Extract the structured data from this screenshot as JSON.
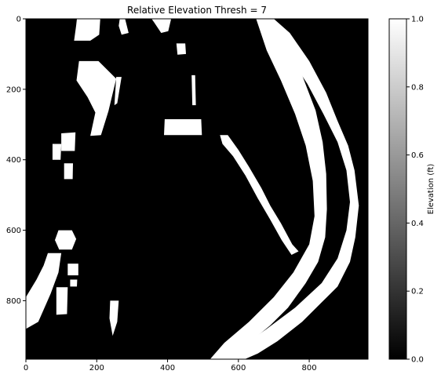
{
  "chart_data": {
    "type": "heatmap",
    "title": "Relative Elevation Thresh = 7",
    "xlabel": "",
    "ylabel": "",
    "xlim": [
      0,
      966
    ],
    "ylim": [
      966,
      0
    ],
    "xticks": [
      0,
      200,
      400,
      600,
      800
    ],
    "yticks": [
      0,
      200,
      400,
      600,
      800
    ],
    "colormap": "gray",
    "background_value": 0,
    "foreground_value": 1,
    "colorbar": {
      "label": "Elevation (ft)",
      "range": [
        0,
        1
      ],
      "ticks": [
        "0.0",
        "0.2",
        "0.4",
        "0.6",
        "0.8",
        "1.0"
      ]
    },
    "masked_regions": [
      {
        "name": "top-left-blob",
        "points": [
          [
            144,
            0
          ],
          [
            210,
            0
          ],
          [
            207,
            45
          ],
          [
            182,
            62
          ],
          [
            136,
            62
          ],
          [
            142,
            18
          ]
        ]
      },
      {
        "name": "top-center-mark",
        "points": [
          [
            265,
            0
          ],
          [
            280,
            0
          ],
          [
            290,
            40
          ],
          [
            270,
            45
          ],
          [
            262,
            20
          ]
        ]
      },
      {
        "name": "top-right-small",
        "points": [
          [
            355,
            0
          ],
          [
            410,
            0
          ],
          [
            402,
            35
          ],
          [
            382,
            40
          ],
          [
            362,
            10
          ]
        ]
      },
      {
        "name": "center-small-square",
        "points": [
          [
            425,
            70
          ],
          [
            450,
            70
          ],
          [
            452,
            100
          ],
          [
            428,
            102
          ]
        ]
      },
      {
        "name": "left-strand",
        "points": [
          [
            150,
            120
          ],
          [
            205,
            120
          ],
          [
            255,
            170
          ],
          [
            233,
            262
          ],
          [
            212,
            330
          ],
          [
            182,
            332
          ],
          [
            196,
            266
          ],
          [
            174,
            222
          ],
          [
            143,
            175
          ]
        ]
      },
      {
        "name": "left-strand-thin",
        "points": [
          [
            255,
            165
          ],
          [
            270,
            165
          ],
          [
            258,
            240
          ],
          [
            250,
            245
          ]
        ]
      },
      {
        "name": "center-thin-line",
        "points": [
          [
            468,
            160
          ],
          [
            478,
            160
          ],
          [
            480,
            245
          ],
          [
            470,
            245
          ]
        ]
      },
      {
        "name": "center-oval",
        "points": [
          [
            392,
            285
          ],
          [
            495,
            285
          ],
          [
            497,
            330
          ],
          [
            390,
            330
          ]
        ]
      },
      {
        "name": "left-pair-1",
        "points": [
          [
            100,
            325
          ],
          [
            140,
            322
          ],
          [
            138,
            375
          ],
          [
            100,
            375
          ]
        ]
      },
      {
        "name": "left-pair-2",
        "points": [
          [
            75,
            355
          ],
          [
            100,
            355
          ],
          [
            98,
            400
          ],
          [
            75,
            400
          ]
        ]
      },
      {
        "name": "left-pair-3",
        "points": [
          [
            108,
            410
          ],
          [
            133,
            410
          ],
          [
            132,
            455
          ],
          [
            108,
            455
          ]
        ]
      },
      {
        "name": "diagonal-strip",
        "points": [
          [
            548,
            330
          ],
          [
            570,
            330
          ],
          [
            600,
            372
          ],
          [
            630,
            420
          ],
          [
            665,
            480
          ],
          [
            690,
            530
          ],
          [
            720,
            580
          ],
          [
            752,
            640
          ],
          [
            770,
            660
          ],
          [
            750,
            670
          ],
          [
            722,
            628
          ],
          [
            690,
            570
          ],
          [
            655,
            510
          ],
          [
            620,
            445
          ],
          [
            585,
            390
          ],
          [
            555,
            355
          ]
        ]
      },
      {
        "name": "left-mid-pill",
        "points": [
          [
            92,
            600
          ],
          [
            130,
            600
          ],
          [
            142,
            625
          ],
          [
            130,
            655
          ],
          [
            94,
            655
          ],
          [
            82,
            628
          ]
        ]
      },
      {
        "name": "left-mid-curve",
        "points": [
          [
            62,
            665
          ],
          [
            100,
            665
          ],
          [
            92,
            720
          ],
          [
            70,
            780
          ],
          [
            35,
            860
          ],
          [
            0,
            880
          ],
          [
            0,
            790
          ],
          [
            30,
            740
          ],
          [
            50,
            700
          ]
        ]
      },
      {
        "name": "left-mid-sq1",
        "points": [
          [
            118,
            695
          ],
          [
            148,
            695
          ],
          [
            148,
            728
          ],
          [
            118,
            728
          ]
        ]
      },
      {
        "name": "left-mid-sq2",
        "points": [
          [
            125,
            740
          ],
          [
            145,
            740
          ],
          [
            144,
            760
          ],
          [
            125,
            760
          ]
        ]
      },
      {
        "name": "left-mid-sq3",
        "points": [
          [
            86,
            762
          ],
          [
            118,
            762
          ],
          [
            116,
            838
          ],
          [
            86,
            840
          ]
        ]
      },
      {
        "name": "bottom-left-drop",
        "points": [
          [
            238,
            800
          ],
          [
            262,
            800
          ],
          [
            258,
            860
          ],
          [
            245,
            900
          ],
          [
            236,
            850
          ]
        ]
      },
      {
        "name": "river-outer-band",
        "points": [
          [
            660,
            0
          ],
          [
            700,
            0
          ],
          [
            745,
            40
          ],
          [
            800,
            120
          ],
          [
            848,
            210
          ],
          [
            880,
            290
          ],
          [
            910,
            360
          ],
          [
            928,
            430
          ],
          [
            940,
            530
          ],
          [
            930,
            620
          ],
          [
            915,
            690
          ],
          [
            880,
            760
          ],
          [
            840,
            800
          ],
          [
            780,
            860
          ],
          [
            710,
            915
          ],
          [
            655,
            950
          ],
          [
            618,
            966
          ],
          [
            550,
            966
          ],
          [
            610,
            930
          ],
          [
            680,
            880
          ],
          [
            760,
            820
          ],
          [
            835,
            750
          ],
          [
            880,
            680
          ],
          [
            905,
            600
          ],
          [
            915,
            520
          ],
          [
            905,
            430
          ],
          [
            880,
            350
          ],
          [
            840,
            270
          ],
          [
            795,
            185
          ],
          [
            740,
            100
          ]
        ]
      },
      {
        "name": "river-inner-band",
        "points": [
          [
            650,
            0
          ],
          [
            690,
            0
          ],
          [
            730,
            60
          ],
          [
            780,
            160
          ],
          [
            818,
            260
          ],
          [
            838,
            350
          ],
          [
            848,
            440
          ],
          [
            850,
            540
          ],
          [
            845,
            620
          ],
          [
            825,
            690
          ],
          [
            790,
            750
          ],
          [
            740,
            820
          ],
          [
            690,
            870
          ],
          [
            630,
            920
          ],
          [
            580,
            966
          ],
          [
            520,
            966
          ],
          [
            560,
            920
          ],
          [
            630,
            860
          ],
          [
            700,
            790
          ],
          [
            755,
            720
          ],
          [
            800,
            640
          ],
          [
            815,
            560
          ],
          [
            810,
            460
          ],
          [
            790,
            360
          ],
          [
            760,
            270
          ],
          [
            720,
            175
          ],
          [
            680,
            90
          ]
        ]
      }
    ]
  }
}
